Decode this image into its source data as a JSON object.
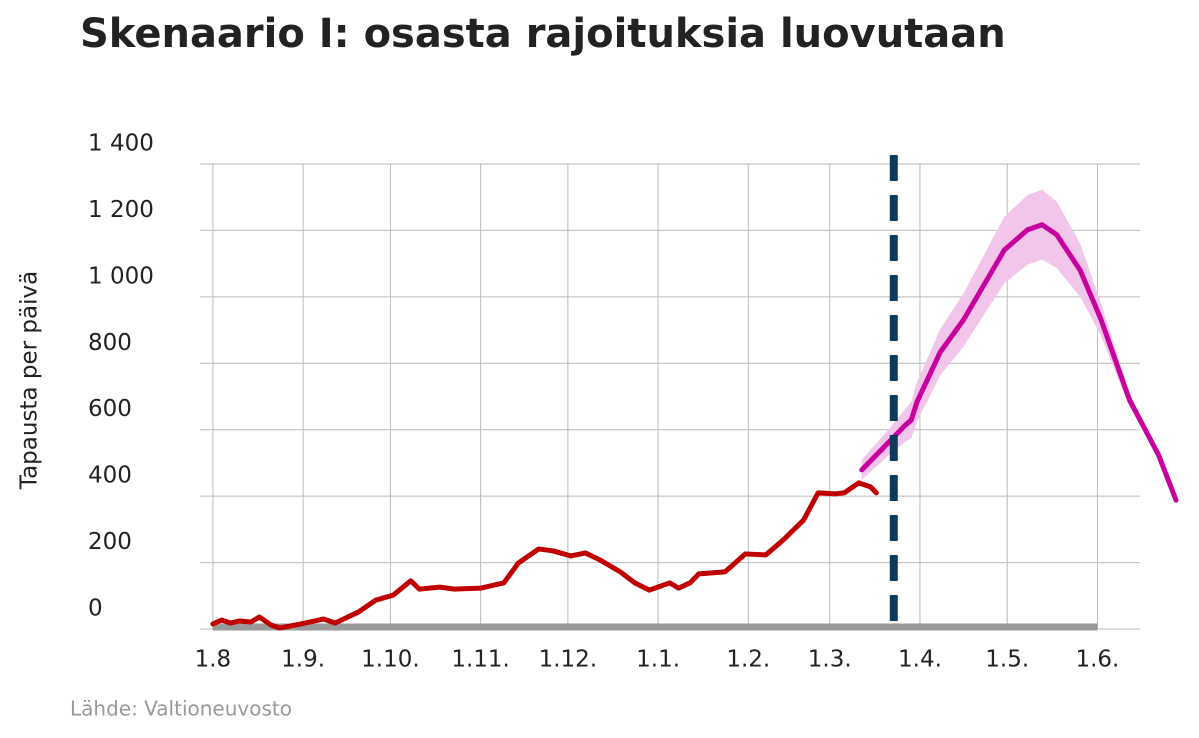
{
  "chart_data": {
    "type": "line",
    "title": "Skenaario I: osasta rajoituksia luovutaan",
    "y_label": "Tapausta per päivä",
    "source": "Lähde: Valtioneuvosto",
    "xlim": [
      -1,
      331
    ],
    "ylim": [
      0,
      1400
    ],
    "xticks": [
      {
        "value": 0,
        "label": "1.8"
      },
      {
        "value": 31,
        "label": "1.9."
      },
      {
        "value": 61,
        "label": "1.10."
      },
      {
        "value": 92,
        "label": "1.11."
      },
      {
        "value": 122,
        "label": "1.12."
      },
      {
        "value": 153,
        "label": "1.1."
      },
      {
        "value": 184,
        "label": "1.2."
      },
      {
        "value": 212,
        "label": "1.3."
      },
      {
        "value": 243,
        "label": "1.4."
      },
      {
        "value": 273,
        "label": "1.5."
      },
      {
        "value": 304,
        "label": "1.6."
      }
    ],
    "yticks": [
      0,
      200,
      400,
      600,
      800,
      {
        "value": 1000,
        "label": "1 000"
      },
      {
        "value": 1200,
        "label": "1 200"
      },
      {
        "value": 1400,
        "label": "1 400"
      }
    ],
    "grid": true,
    "marker_x": 234,
    "marker_color": "#0d3a5c",
    "series": [
      {
        "color": "#c00000",
        "x": [
          0,
          3,
          6,
          9,
          13,
          16,
          20,
          23,
          30,
          38,
          42,
          50,
          56,
          62,
          68,
          71,
          78,
          83,
          92,
          100,
          105,
          112,
          117,
          123,
          128,
          133,
          140,
          145,
          150,
          157,
          160,
          164,
          167,
          176,
          183,
          190,
          196,
          203,
          208,
          214,
          217,
          222,
          226,
          228
        ],
        "values": [
          15,
          27,
          18,
          24,
          21,
          36,
          12,
          3,
          15,
          30,
          18,
          51,
          87,
          102,
          145,
          120,
          126,
          120,
          123,
          139,
          199,
          241,
          235,
          220,
          229,
          208,
          172,
          139,
          117,
          139,
          123,
          139,
          166,
          172,
          226,
          223,
          268,
          328,
          410,
          407,
          410,
          440,
          428,
          410
        ]
      },
      {
        "color": "#c8009e",
        "band_color": "#f1c6ea",
        "x": [
          223,
          228,
          233,
          238,
          240,
          242,
          250,
          258,
          265,
          272,
          280,
          285,
          290,
          298,
          305,
          315,
          325,
          331
        ],
        "values": [
          479,
          524,
          569,
          614,
          629,
          684,
          834,
          931,
          1036,
          1141,
          1202,
          1217,
          1187,
          1081,
          937,
          690,
          524,
          388
        ],
        "lower": [
          449,
          489,
          529,
          564,
          574,
          624,
          764,
          851,
          946,
          1041,
          1097,
          1112,
          1087,
          1001,
          887,
          670,
          519,
          388
        ],
        "upper": [
          509,
          559,
          609,
          664,
          684,
          744,
          904,
          1011,
          1126,
          1241,
          1307,
          1322,
          1287,
          1161,
          987,
          710,
          529,
          388
        ]
      }
    ]
  }
}
